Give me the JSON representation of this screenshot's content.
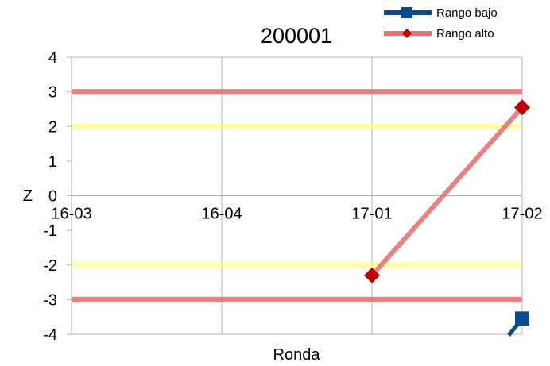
{
  "chart_data": {
    "type": "line",
    "title": "200001",
    "xlabel": "Ronda",
    "ylabel": "Z",
    "ylim": [
      -4,
      4
    ],
    "yticks": [
      "4",
      "3",
      "2",
      "1",
      "0",
      "-1",
      "-2",
      "-3",
      "-4"
    ],
    "categories": [
      "16-03",
      "16-04",
      "17-01",
      "17-02"
    ],
    "grid": "vertical",
    "legend_position": "top-right",
    "reference_lines": [
      {
        "y": 3,
        "color": "#e57373"
      },
      {
        "y": 2,
        "color": "#ffff66"
      },
      {
        "y": -2,
        "color": "#ffff66"
      },
      {
        "y": -3,
        "color": "#e57373"
      }
    ],
    "series": [
      {
        "name": "Rango bajo",
        "color": "#0d4a8c",
        "marker": "square",
        "values": [
          null,
          null,
          null,
          -3.55
        ]
      },
      {
        "name": "Rango alto",
        "color": "#e57373",
        "marker_color": "#c00000",
        "marker": "diamond",
        "values": [
          null,
          null,
          -2.3,
          2.55
        ]
      }
    ]
  }
}
